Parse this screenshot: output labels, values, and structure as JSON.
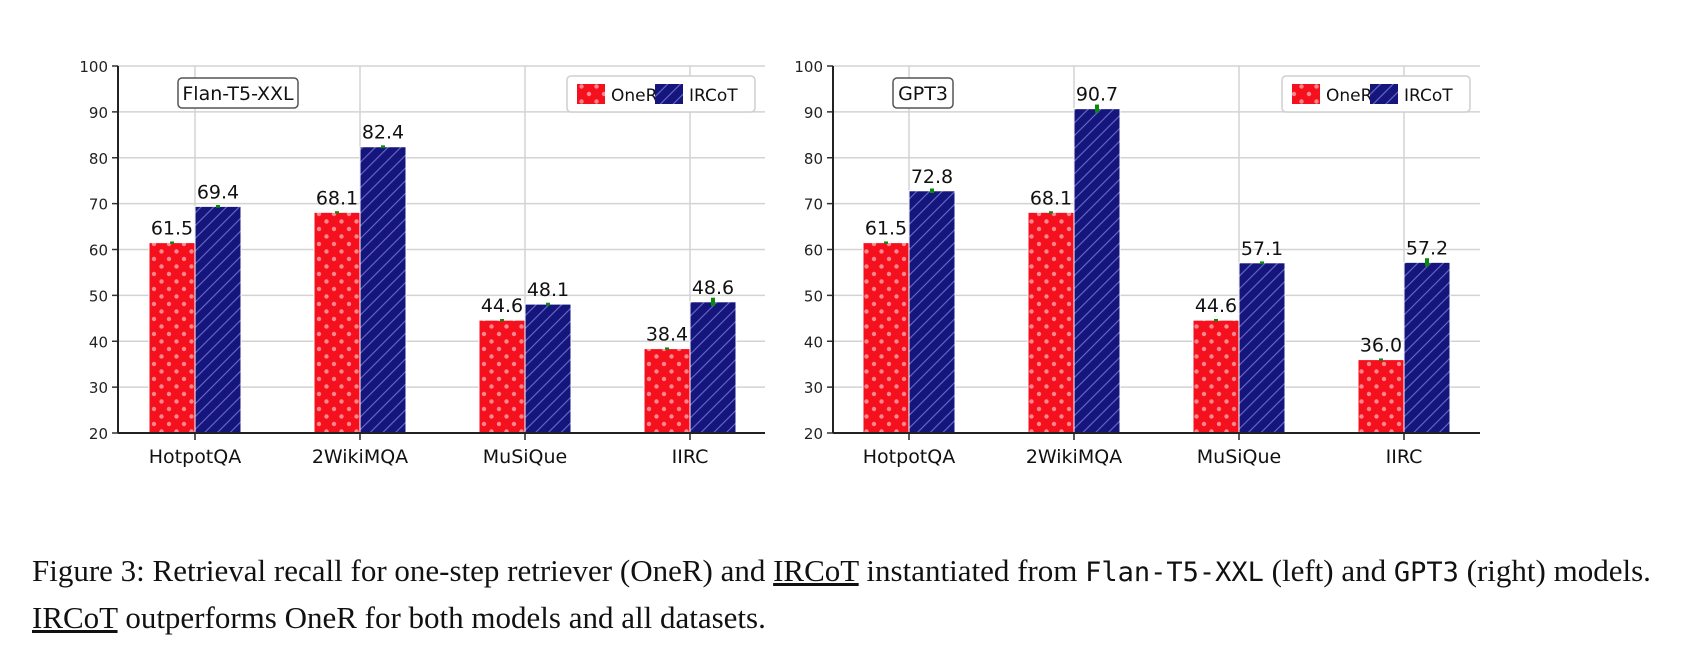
{
  "chart_data": [
    {
      "type": "bar",
      "model_label": "Flan-T5-XXL",
      "categories": [
        "HotpotQA",
        "2WikiMQA",
        "MuSiQue",
        "IIRC"
      ],
      "ylim": [
        20,
        100
      ],
      "yticks": [
        "20",
        "30",
        "40",
        "50",
        "60",
        "70",
        "80",
        "90",
        "100"
      ],
      "grid": true,
      "legend_position": "top-right",
      "series": [
        {
          "name": "OneR",
          "color": "#f5101e",
          "pattern": "dots",
          "values": [
            61.5,
            68.1,
            44.6,
            38.4
          ],
          "labels": [
            "61.5",
            "68.1",
            "44.6",
            "38.4"
          ]
        },
        {
          "name": "IRCoT",
          "color": "#15157e",
          "pattern": "hatch",
          "values": [
            69.4,
            82.4,
            48.1,
            48.6
          ],
          "labels": [
            "69.4",
            "82.4",
            "48.1",
            "48.6"
          ]
        }
      ],
      "error_color": "#0a8a0a",
      "error_half_width": [
        0.3,
        0.3,
        0.3,
        0.9
      ]
    },
    {
      "type": "bar",
      "model_label": "GPT3",
      "categories": [
        "HotpotQA",
        "2WikiMQA",
        "MuSiQue",
        "IIRC"
      ],
      "ylim": [
        20,
        100
      ],
      "yticks": [
        "20",
        "30",
        "40",
        "50",
        "60",
        "70",
        "80",
        "90",
        "100"
      ],
      "grid": true,
      "legend_position": "top-right",
      "series": [
        {
          "name": "OneR",
          "color": "#f5101e",
          "pattern": "dots",
          "values": [
            61.5,
            68.1,
            44.6,
            36.0
          ],
          "labels": [
            "61.5",
            "68.1",
            "44.6",
            "36.0"
          ]
        },
        {
          "name": "IRCoT",
          "color": "#15157e",
          "pattern": "hatch",
          "values": [
            72.8,
            90.7,
            57.1,
            57.2
          ],
          "labels": [
            "72.8",
            "90.7",
            "57.1",
            "57.2"
          ]
        }
      ],
      "error_color": "#0a8a0a",
      "error_half_width": [
        0.5,
        0.9,
        0.3,
        0.9
      ]
    }
  ],
  "caption": {
    "prefix": "Figure 3: Retrieval recall for one-step retriever (OneR) and ",
    "ircot_1": "IRCoT",
    "mid1": " instantiated from ",
    "model1": "Flan-T5-XXL",
    "mid2": " (left) and ",
    "model2": "GPT3",
    "mid3": " (right) models. ",
    "ircot_2": "IRCoT",
    "suffix": " outperforms OneR for both models and all datasets."
  }
}
